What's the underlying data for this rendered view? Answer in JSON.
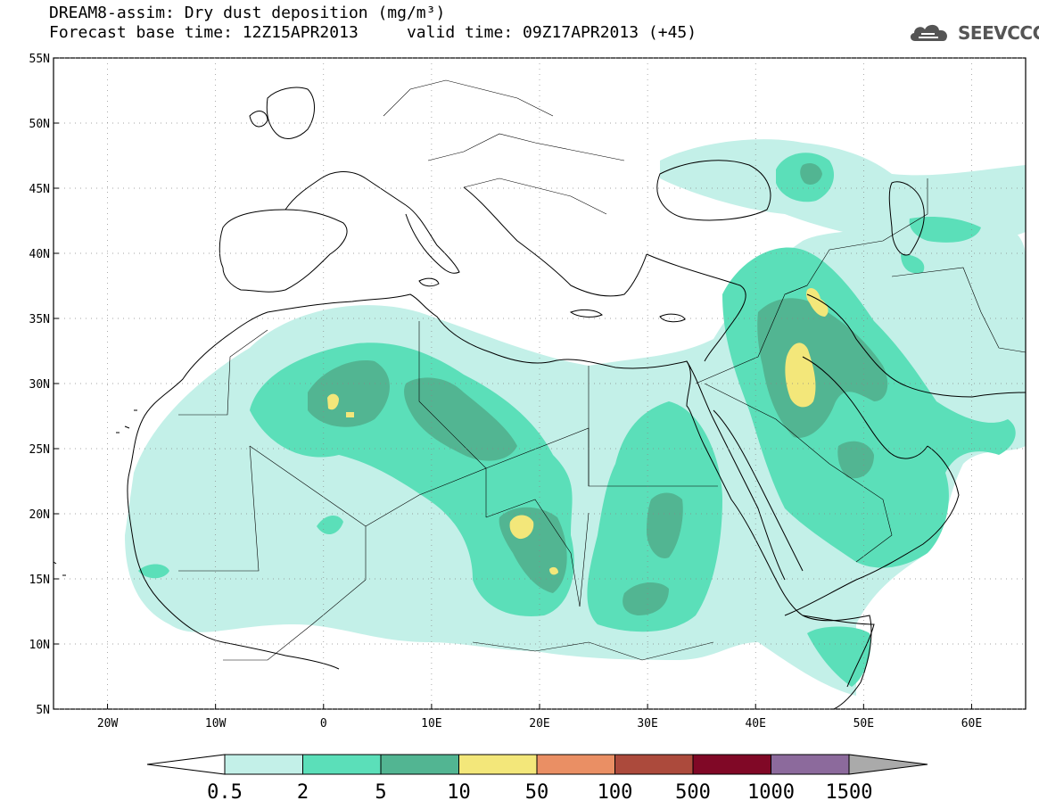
{
  "title_line1": "DREAM8-assim: Dry dust deposition (mg/m³)",
  "title_line2": "Forecast base time: 12Z15APR2013     valid time: 09Z17APR2013 (+45)",
  "logo_text": "SEEVCCC",
  "map": {
    "lon_range": [
      -25,
      65
    ],
    "lat_range": [
      5,
      55
    ],
    "lat_labels": [
      "55N",
      "50N",
      "45N",
      "40N",
      "35N",
      "30N",
      "25N",
      "20N",
      "15N",
      "10N",
      "5N"
    ],
    "lat_values": [
      55,
      50,
      45,
      40,
      35,
      30,
      25,
      20,
      15,
      10,
      5
    ],
    "lon_labels": [
      "20W",
      "10W",
      "0",
      "10E",
      "20E",
      "30E",
      "40E",
      "50E",
      "60E"
    ],
    "lon_values": [
      -20,
      -10,
      0,
      10,
      20,
      30,
      40,
      50,
      60
    ]
  },
  "legend": {
    "labels": [
      "0.5",
      "2",
      "5",
      "10",
      "50",
      "100",
      "500",
      "1000",
      "1500"
    ],
    "colors": [
      "#c3f0e8",
      "#5bdfb9",
      "#52b592",
      "#f3e77a",
      "#ea8f64",
      "#ac4a3c",
      "#800826",
      "#8c6a9c"
    ]
  }
}
